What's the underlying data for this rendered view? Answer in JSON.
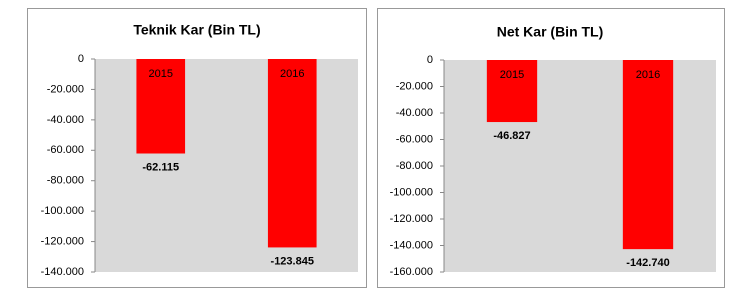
{
  "chart_data": [
    {
      "type": "bar",
      "title": "Teknik Kar (Bin TL)",
      "categories": [
        "2015",
        "2016"
      ],
      "values": [
        -62115,
        -123845
      ],
      "value_labels": [
        "-62.115",
        "-123.845"
      ],
      "color": "#ff0000",
      "ylim": [
        -140000,
        0
      ],
      "yticks": [
        0,
        {
          "value": -20000,
          "label": "-20.000"
        },
        {
          "value": -40000,
          "label": "-40.000"
        },
        {
          "value": -60000,
          "label": "-60.000"
        },
        {
          "value": -80000,
          "label": "-80.000"
        },
        {
          "value": -100000,
          "label": "-100.000"
        },
        {
          "value": -120000,
          "label": "-120.000"
        },
        {
          "value": -140000,
          "label": "-140.000"
        }
      ]
    },
    {
      "type": "bar",
      "title": "Net Kar (Bin TL)",
      "categories": [
        "2015",
        "2016"
      ],
      "values": [
        -46827,
        -142740
      ],
      "value_labels": [
        "-46.827",
        "-142.740"
      ],
      "color": "#ff0000",
      "ylim": [
        -160000,
        0
      ],
      "yticks": [
        0,
        {
          "value": -20000,
          "label": "-20.000"
        },
        {
          "value": -40000,
          "label": "-40.000"
        },
        {
          "value": -60000,
          "label": "-60.000"
        },
        {
          "value": -80000,
          "label": "-80.000"
        },
        {
          "value": -100000,
          "label": "-100.000"
        },
        {
          "value": -120000,
          "label": "-120.000"
        },
        {
          "value": -140000,
          "label": "-140.000"
        },
        {
          "value": -160000,
          "label": "-160.000"
        }
      ]
    }
  ]
}
